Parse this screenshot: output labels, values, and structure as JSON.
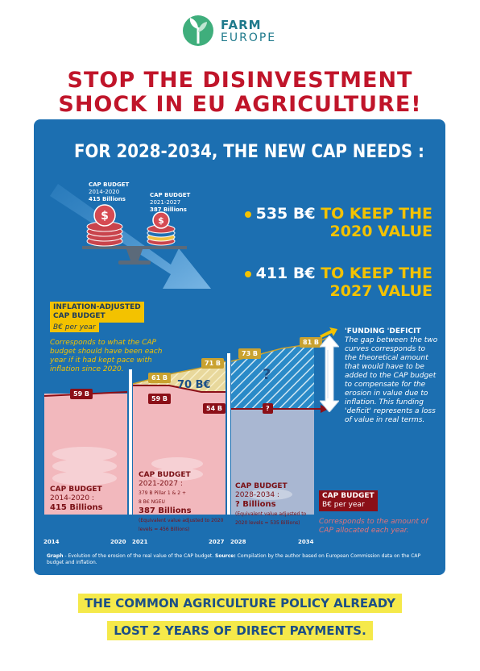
{
  "brand": {
    "line1": "FARM",
    "line2": "EUROPE"
  },
  "headline": {
    "line1": "STOP THE DISINVESTMENT",
    "line2": "SHOCK IN EU AGRICULTURE!"
  },
  "panel": {
    "title": "FOR 2028-2034,  THE NEW CAP NEEDS :",
    "budget_left": {
      "title": "CAP BUDGET",
      "years": "2014-2020",
      "amount": "415 Billions"
    },
    "budget_right": {
      "title": "CAP BUDGET",
      "years": "2021-2027",
      "amount": "387 Billions"
    },
    "need1": {
      "value": "535 B€",
      "text1": "TO KEEP THE",
      "text2": "2020 VALUE"
    },
    "need2": {
      "value": "411 B€",
      "text1": "TO KEEP THE",
      "text2": "2027 VALUE"
    },
    "inflation_label": {
      "line1": "INFLATION-ADJUSTED",
      "line2": "CAP BUDGET",
      "unit": "B€ per year"
    },
    "inflation_desc": "Corresponds to what the CAP budget should have been each year if it had kept pace with inflation since 2020.",
    "badges": {
      "b59_left": "59 B",
      "b61": "61 B",
      "b59_mid": "59 B",
      "b71": "71 B",
      "b54": "54 B",
      "b73": "73 B",
      "b81": "81 B",
      "gap70": "70 B€",
      "q": "?",
      "qred": "?"
    },
    "period1": {
      "title": "CAP BUDGET",
      "years": "2014-2020 :",
      "amount": "415 Billions"
    },
    "period2": {
      "title": "CAP BUDGET",
      "years": "2021-2027 :",
      "sub1": "379 B  Pillar 1 & 2 +",
      "sub2": "8 B€ NGEU",
      "amount": "387 Billions",
      "note": "(Equivalent value adjusted to 2020 levels = 456 Billions)"
    },
    "period3": {
      "title": "CAP BUDGET",
      "years": "2028-2034 :",
      "amount": "? Billions",
      "note": "(Equivalent value adjusted to 2020 levels = 535 Billions)"
    },
    "years": {
      "y2014": "2014",
      "y2020": "2020",
      "y2021": "2021",
      "y2027": "2027",
      "y2028": "2028",
      "y2034": "2034"
    },
    "funding": {
      "title": "'FUNDING 'DEFICIT",
      "text": "The gap between the two curves corresponds to the theoretical amount that would have to be added to the CAP budget to compensate for the erosion in value due to inflation. This funding 'deficit' represents a loss of value in real terms."
    },
    "cap_legend": {
      "title": "CAP BUDGET",
      "unit": "B€ per year",
      "desc": "Corresponds to the amount of CAP allocated each year."
    },
    "caption_bold": "Graph",
    "caption_text": " - Evolution of the erosion of the real value of the CAP budget. ",
    "caption_bold2": "Source:",
    "caption_text2": " Compilation by the author based on European Commission data on the CAP budget and inflation."
  },
  "footer": {
    "line1": "THE COMMON AGRICULTURE POLICY ALREADY",
    "line2": "LOST 2 YEARS OF DIRECT PAYMENTS."
  },
  "colors": {
    "brand_red": "#c0152a",
    "panel_blue": "#1c6fb1",
    "accent_yellow": "#f3c200",
    "dark_red": "#8b0f17",
    "footer_yellow": "#f5e94a"
  }
}
